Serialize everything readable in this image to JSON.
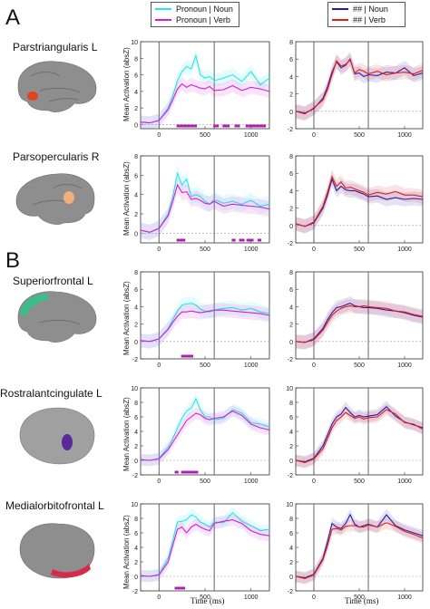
{
  "panel_letters": [
    "A",
    "B"
  ],
  "regions": [
    "Parstriangularis L",
    "Parsopercularis R",
    "Superiorfrontal L",
    "Rostralantcingulate L",
    "Medialorbitofrontal L"
  ],
  "legend_left": {
    "items": [
      {
        "label": "Pronoun | Noun",
        "color": "#27e8e8"
      },
      {
        "label": "Pronoun | Verb",
        "color": "#d21fd2"
      }
    ]
  },
  "legend_right": {
    "items": [
      {
        "label": "## | Noun",
        "color": "#1b1bb0"
      },
      {
        "label": "## | Verb",
        "color": "#e01b1b"
      }
    ]
  },
  "ylabel": "Mean Activation (absZ)",
  "xlabel": "Time (ms)",
  "colors": {
    "brain": "#8e8e8e",
    "significance": "#b020b0",
    "vline": "#555555"
  },
  "chart_data": [
    {
      "type": "line",
      "row": 0,
      "col": 0,
      "ylim": [
        -0.5,
        10
      ],
      "yticks": [
        0,
        2,
        4,
        6,
        8,
        10
      ],
      "xlim": [
        -200,
        1200
      ],
      "xticks": [
        0,
        500,
        1000
      ],
      "vlines": [
        0,
        600
      ],
      "x": [
        -200,
        -100,
        0,
        100,
        150,
        200,
        250,
        300,
        350,
        400,
        450,
        500,
        550,
        600,
        700,
        800,
        900,
        1000,
        1100,
        1200
      ],
      "series": [
        {
          "name": "Pronoun | Noun",
          "values": [
            0.3,
            0.2,
            0.5,
            2.0,
            3.5,
            5.3,
            6.4,
            7.0,
            6.7,
            8.3,
            6.0,
            5.6,
            5.8,
            5.3,
            5.6,
            6.0,
            5.2,
            6.4,
            4.8,
            5.6
          ]
        },
        {
          "name": "Pronoun | Verb",
          "values": [
            0.3,
            0.2,
            0.5,
            1.8,
            3.0,
            4.3,
            4.9,
            4.5,
            4.8,
            4.6,
            4.4,
            4.3,
            4.6,
            4.1,
            4.2,
            4.7,
            4.1,
            4.5,
            4.3,
            4.0
          ]
        }
      ],
      "significance": [
        [
          200,
          400
        ],
        [
          600,
          640
        ],
        [
          700,
          760
        ],
        [
          830,
          870
        ],
        [
          950,
          1150
        ]
      ]
    },
    {
      "type": "line",
      "row": 0,
      "col": 1,
      "ylim": [
        -2,
        8
      ],
      "yticks": [
        -2,
        0,
        2,
        4,
        6,
        8
      ],
      "xlim": [
        -200,
        1200
      ],
      "xticks": [
        0,
        500,
        1000
      ],
      "vlines": [
        0,
        600
      ],
      "x": [
        -200,
        -100,
        0,
        100,
        150,
        200,
        250,
        300,
        350,
        400,
        450,
        500,
        550,
        600,
        700,
        800,
        900,
        1000,
        1100,
        1200
      ],
      "series": [
        {
          "name": "## | Noun",
          "values": [
            0.0,
            -0.2,
            0.3,
            1.5,
            2.8,
            4.5,
            5.7,
            5.0,
            5.3,
            6.0,
            4.3,
            4.4,
            4.0,
            4.2,
            4.1,
            4.5,
            4.4,
            5.0,
            4.1,
            4.4
          ]
        },
        {
          "name": "## | Verb",
          "values": [
            0.0,
            -0.3,
            0.4,
            1.3,
            2.5,
            4.2,
            5.8,
            5.2,
            5.4,
            5.9,
            4.4,
            4.8,
            4.6,
            4.3,
            4.6,
            4.2,
            4.4,
            4.5,
            4.3,
            4.7
          ]
        }
      ],
      "significance": []
    },
    {
      "type": "line",
      "row": 1,
      "col": 0,
      "ylim": [
        -1,
        8
      ],
      "yticks": [
        0,
        2,
        4,
        6,
        8
      ],
      "xlim": [
        -200,
        1200
      ],
      "xticks": [
        0,
        500,
        1000
      ],
      "vlines": [
        0,
        600
      ],
      "x": [
        -200,
        -100,
        0,
        100,
        150,
        200,
        250,
        300,
        350,
        400,
        450,
        500,
        550,
        600,
        700,
        800,
        900,
        1000,
        1100,
        1200
      ],
      "series": [
        {
          "name": "Pronoun | Noun",
          "values": [
            0.3,
            0.1,
            0.5,
            2.0,
            3.8,
            6.2,
            5.0,
            5.6,
            3.8,
            4.0,
            3.8,
            3.3,
            3.0,
            3.5,
            3.1,
            3.3,
            3.0,
            3.4,
            2.8,
            3.0
          ]
        },
        {
          "name": "Pronoun | Verb",
          "values": [
            0.3,
            0.1,
            0.5,
            1.8,
            3.3,
            5.0,
            4.2,
            4.3,
            3.5,
            3.6,
            3.4,
            3.1,
            3.0,
            3.3,
            2.8,
            3.0,
            2.9,
            2.8,
            2.7,
            2.5
          ]
        }
      ],
      "significance": [
        [
          200,
          280
        ],
        [
          800,
          820
        ],
        [
          880,
          920
        ],
        [
          960,
          1020
        ],
        [
          1080,
          1100
        ]
      ]
    },
    {
      "type": "line",
      "row": 1,
      "col": 1,
      "ylim": [
        -2,
        8
      ],
      "yticks": [
        -2,
        0,
        2,
        4,
        6,
        8
      ],
      "xlim": [
        -200,
        1200
      ],
      "xticks": [
        0,
        500,
        1000
      ],
      "vlines": [
        0,
        600
      ],
      "x": [
        -200,
        -100,
        0,
        100,
        150,
        200,
        250,
        300,
        350,
        400,
        450,
        500,
        550,
        600,
        700,
        800,
        900,
        1000,
        1100,
        1200
      ],
      "series": [
        {
          "name": "## | Noun",
          "values": [
            0.2,
            -0.1,
            0.3,
            2.0,
            3.5,
            5.3,
            4.0,
            4.5,
            4.1,
            4.0,
            4.0,
            3.8,
            3.6,
            3.3,
            3.4,
            3.0,
            3.2,
            3.0,
            3.1,
            3.0
          ]
        },
        {
          "name": "## | Verb",
          "values": [
            0.2,
            -0.1,
            0.4,
            2.2,
            3.8,
            5.6,
            4.5,
            5.0,
            4.3,
            4.4,
            4.2,
            4.0,
            3.8,
            3.5,
            3.8,
            3.6,
            3.9,
            3.5,
            3.5,
            3.3
          ]
        }
      ],
      "significance": []
    },
    {
      "type": "line",
      "row": 2,
      "col": 0,
      "ylim": [
        -2,
        8
      ],
      "yticks": [
        -2,
        0,
        2,
        4,
        6,
        8
      ],
      "xlim": [
        -200,
        1200
      ],
      "xticks": [
        0,
        500,
        1000
      ],
      "vlines": [
        0,
        600
      ],
      "x": [
        -200,
        -100,
        0,
        100,
        150,
        200,
        250,
        300,
        350,
        400,
        450,
        500,
        550,
        600,
        700,
        800,
        900,
        1000,
        1100,
        1200
      ],
      "series": [
        {
          "name": "Pronoun | Noun",
          "values": [
            0.1,
            0.0,
            0.3,
            1.5,
            2.5,
            3.5,
            4.2,
            4.3,
            4.4,
            4.2,
            3.7,
            3.5,
            3.4,
            3.6,
            3.8,
            3.9,
            3.6,
            3.8,
            3.4,
            3.2
          ]
        },
        {
          "name": "Pronoun | Verb",
          "values": [
            0.1,
            0.0,
            0.3,
            1.4,
            2.2,
            2.9,
            3.4,
            3.4,
            3.5,
            3.4,
            3.3,
            3.4,
            3.5,
            3.6,
            3.6,
            3.5,
            3.4,
            3.3,
            3.2,
            3.0
          ]
        }
      ],
      "significance": [
        [
          250,
          360
        ]
      ]
    },
    {
      "type": "line",
      "row": 2,
      "col": 1,
      "ylim": [
        -2,
        8
      ],
      "yticks": [
        -2,
        0,
        2,
        4,
        6,
        8
      ],
      "xlim": [
        -200,
        1200
      ],
      "xticks": [
        0,
        500,
        1000
      ],
      "vlines": [
        0,
        600
      ],
      "x": [
        -200,
        -100,
        0,
        100,
        150,
        200,
        250,
        300,
        350,
        400,
        450,
        500,
        550,
        600,
        700,
        800,
        900,
        1000,
        1100,
        1200
      ],
      "series": [
        {
          "name": "## | Noun",
          "values": [
            0.0,
            -0.1,
            0.3,
            1.5,
            2.5,
            3.3,
            3.9,
            4.0,
            4.2,
            4.4,
            4.1,
            4.0,
            3.9,
            3.9,
            3.8,
            3.6,
            3.5,
            3.3,
            3.0,
            2.8
          ]
        },
        {
          "name": "## | Verb",
          "values": [
            0.0,
            -0.1,
            0.2,
            1.3,
            2.2,
            3.0,
            3.5,
            3.8,
            4.0,
            4.1,
            4.0,
            4.0,
            4.1,
            4.0,
            3.9,
            3.8,
            3.5,
            3.4,
            3.1,
            2.9
          ]
        }
      ],
      "significance": []
    },
    {
      "type": "line",
      "row": 3,
      "col": 0,
      "ylim": [
        -2,
        10
      ],
      "yticks": [
        -2,
        0,
        2,
        4,
        6,
        8,
        10
      ],
      "xlim": [
        -200,
        1200
      ],
      "xticks": [
        0,
        500,
        1000
      ],
      "vlines": [
        0,
        600
      ],
      "x": [
        -200,
        -100,
        0,
        100,
        150,
        200,
        250,
        300,
        350,
        400,
        450,
        500,
        550,
        600,
        700,
        800,
        900,
        1000,
        1100,
        1200
      ],
      "series": [
        {
          "name": "Pronoun | Noun",
          "values": [
            0.1,
            0.0,
            0.3,
            1.8,
            3.0,
            4.5,
            5.8,
            6.8,
            7.2,
            8.5,
            7.0,
            6.0,
            6.0,
            5.6,
            5.8,
            7.0,
            6.5,
            5.2,
            5.0,
            4.6
          ]
        },
        {
          "name": "Pronoun | Verb",
          "values": [
            0.1,
            0.0,
            0.2,
            1.5,
            2.5,
            3.5,
            4.5,
            5.5,
            6.0,
            6.5,
            6.3,
            5.8,
            5.6,
            5.8,
            6.0,
            6.8,
            6.2,
            5.0,
            4.5,
            4.2
          ]
        }
      ],
      "significance": [
        [
          180,
          200
        ],
        [
          250,
          420
        ]
      ]
    },
    {
      "type": "line",
      "row": 3,
      "col": 1,
      "ylim": [
        -2,
        10
      ],
      "yticks": [
        -2,
        0,
        2,
        4,
        6,
        8,
        10
      ],
      "xlim": [
        -200,
        1200
      ],
      "xticks": [
        0,
        500,
        1000
      ],
      "vlines": [
        0,
        600
      ],
      "x": [
        -200,
        -100,
        0,
        100,
        150,
        200,
        250,
        300,
        350,
        400,
        450,
        500,
        550,
        600,
        700,
        800,
        900,
        1000,
        1100,
        1200
      ],
      "series": [
        {
          "name": "## | Noun",
          "values": [
            0.0,
            -0.2,
            0.3,
            2.0,
            3.5,
            5.0,
            6.0,
            6.4,
            7.3,
            6.6,
            6.0,
            6.2,
            6.0,
            6.1,
            6.3,
            7.4,
            6.1,
            5.3,
            4.9,
            4.5
          ]
        },
        {
          "name": "## | Verb",
          "values": [
            0.0,
            -0.3,
            0.2,
            1.6,
            3.0,
            4.5,
            5.5,
            6.0,
            6.6,
            6.2,
            5.8,
            6.0,
            5.7,
            5.9,
            6.0,
            7.0,
            6.4,
            5.2,
            5.0,
            4.3
          ]
        }
      ],
      "significance": []
    },
    {
      "type": "line",
      "row": 4,
      "col": 0,
      "ylim": [
        -2,
        10
      ],
      "yticks": [
        -2,
        0,
        2,
        4,
        6,
        8,
        10
      ],
      "xlim": [
        -200,
        1200
      ],
      "xticks": [
        0,
        500,
        1000
      ],
      "vlines": [
        0,
        600
      ],
      "x": [
        -200,
        -100,
        0,
        100,
        150,
        200,
        250,
        300,
        350,
        400,
        450,
        500,
        550,
        600,
        700,
        800,
        900,
        1000,
        1100,
        1200
      ],
      "series": [
        {
          "name": "Pronoun | Noun",
          "values": [
            0.1,
            0.0,
            0.3,
            2.5,
            5.0,
            7.5,
            7.6,
            7.8,
            8.5,
            8.2,
            7.5,
            7.2,
            6.8,
            7.5,
            7.4,
            8.8,
            7.6,
            7.0,
            6.3,
            6.5
          ]
        },
        {
          "name": "Pronoun | Verb",
          "values": [
            0.1,
            0.0,
            0.2,
            2.0,
            4.3,
            6.5,
            6.8,
            6.0,
            6.8,
            7.2,
            6.8,
            6.5,
            6.3,
            7.3,
            7.6,
            7.8,
            7.3,
            6.3,
            5.8,
            5.6
          ]
        }
      ],
      "significance": [
        [
          180,
          280
        ]
      ]
    },
    {
      "type": "line",
      "row": 4,
      "col": 1,
      "ylim": [
        -2,
        10
      ],
      "yticks": [
        -2,
        0,
        2,
        4,
        6,
        8,
        10
      ],
      "xlim": [
        -200,
        1200
      ],
      "xticks": [
        0,
        500,
        1000
      ],
      "vlines": [
        0,
        600
      ],
      "x": [
        -200,
        -100,
        0,
        100,
        150,
        200,
        250,
        300,
        350,
        400,
        450,
        500,
        550,
        600,
        700,
        800,
        900,
        1000,
        1100,
        1200
      ],
      "series": [
        {
          "name": "## | Noun",
          "values": [
            0.0,
            -0.2,
            0.3,
            2.5,
            4.8,
            7.3,
            6.8,
            6.6,
            7.3,
            8.5,
            7.2,
            6.8,
            7.0,
            7.2,
            6.8,
            8.5,
            7.0,
            6.4,
            6.0,
            5.6
          ]
        },
        {
          "name": "## | Verb",
          "values": [
            0.0,
            -0.3,
            0.2,
            2.3,
            4.2,
            6.5,
            6.6,
            6.4,
            6.9,
            7.0,
            7.0,
            6.8,
            6.8,
            7.1,
            6.8,
            7.4,
            6.9,
            6.2,
            5.8,
            5.3
          ]
        }
      ],
      "significance": []
    }
  ]
}
